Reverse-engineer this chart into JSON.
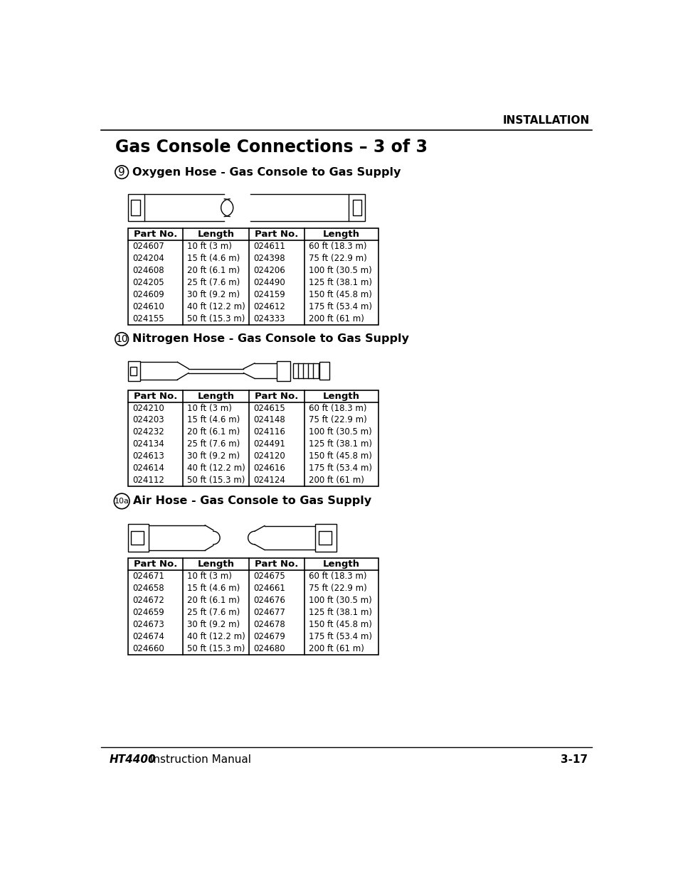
{
  "page_title": "Gas Console Connections – 3 of 3",
  "header_text": "INSTALLATION",
  "footer_left_bold": "HT4400",
  "footer_left_rest": " Instruction Manual",
  "footer_right": "3-17",
  "section9_label": "9",
  "section9_title": "Oxygen Hose - Gas Console to Gas Supply",
  "section10_label": "10",
  "section10_title": "Nitrogen Hose - Gas Console to Gas Supply",
  "section10a_label": "10a",
  "section10a_title": "Air Hose - Gas Console to Gas Supply",
  "table1_left": [
    [
      "024607",
      "10 ft (3 m)"
    ],
    [
      "024204",
      "15 ft (4.6 m)"
    ],
    [
      "024608",
      "20 ft (6.1 m)"
    ],
    [
      "024205",
      "25 ft (7.6 m)"
    ],
    [
      "024609",
      "30 ft (9.2 m)"
    ],
    [
      "024610",
      "40 ft (12.2 m)"
    ],
    [
      "024155",
      "50 ft (15.3 m)"
    ]
  ],
  "table1_right": [
    [
      "024611",
      "60 ft (18.3 m)"
    ],
    [
      "024398",
      "75 ft (22.9 m)"
    ],
    [
      "024206",
      "100 ft (30.5 m)"
    ],
    [
      "024490",
      "125 ft (38.1 m)"
    ],
    [
      "024159",
      "150 ft (45.8 m)"
    ],
    [
      "024612",
      "175 ft (53.4 m)"
    ],
    [
      "024333",
      "200 ft (61 m)"
    ]
  ],
  "table2_left": [
    [
      "024210",
      "10 ft (3 m)"
    ],
    [
      "024203",
      "15 ft (4.6 m)"
    ],
    [
      "024232",
      "20 ft (6.1 m)"
    ],
    [
      "024134",
      "25 ft (7.6 m)"
    ],
    [
      "024613",
      "30 ft (9.2 m)"
    ],
    [
      "024614",
      "40 ft (12.2 m)"
    ],
    [
      "024112",
      "50 ft (15.3 m)"
    ]
  ],
  "table2_right": [
    [
      "024615",
      "60 ft (18.3 m)"
    ],
    [
      "024148",
      "75 ft (22.9 m)"
    ],
    [
      "024116",
      "100 ft (30.5 m)"
    ],
    [
      "024491",
      "125 ft (38.1 m)"
    ],
    [
      "024120",
      "150 ft (45.8 m)"
    ],
    [
      "024616",
      "175 ft (53.4 m)"
    ],
    [
      "024124",
      "200 ft (61 m)"
    ]
  ],
  "table3_left": [
    [
      "024671",
      "10 ft (3 m)"
    ],
    [
      "024658",
      "15 ft (4.6 m)"
    ],
    [
      "024672",
      "20 ft (6.1 m)"
    ],
    [
      "024659",
      "25 ft (7.6 m)"
    ],
    [
      "024673",
      "30 ft (9.2 m)"
    ],
    [
      "024674",
      "40 ft (12.2 m)"
    ],
    [
      "024660",
      "50 ft (15.3 m)"
    ]
  ],
  "table3_right": [
    [
      "024675",
      "60 ft (18.3 m)"
    ],
    [
      "024661",
      "75 ft (22.9 m)"
    ],
    [
      "024676",
      "100 ft (30.5 m)"
    ],
    [
      "024677",
      "125 ft (38.1 m)"
    ],
    [
      "024678",
      "150 ft (45.8 m)"
    ],
    [
      "024679",
      "175 ft (53.4 m)"
    ],
    [
      "024680",
      "200 ft (61 m)"
    ]
  ],
  "bg_color": "#ffffff",
  "text_color": "#000000",
  "table_header_col": "Part No.",
  "table_header_len": "Length"
}
